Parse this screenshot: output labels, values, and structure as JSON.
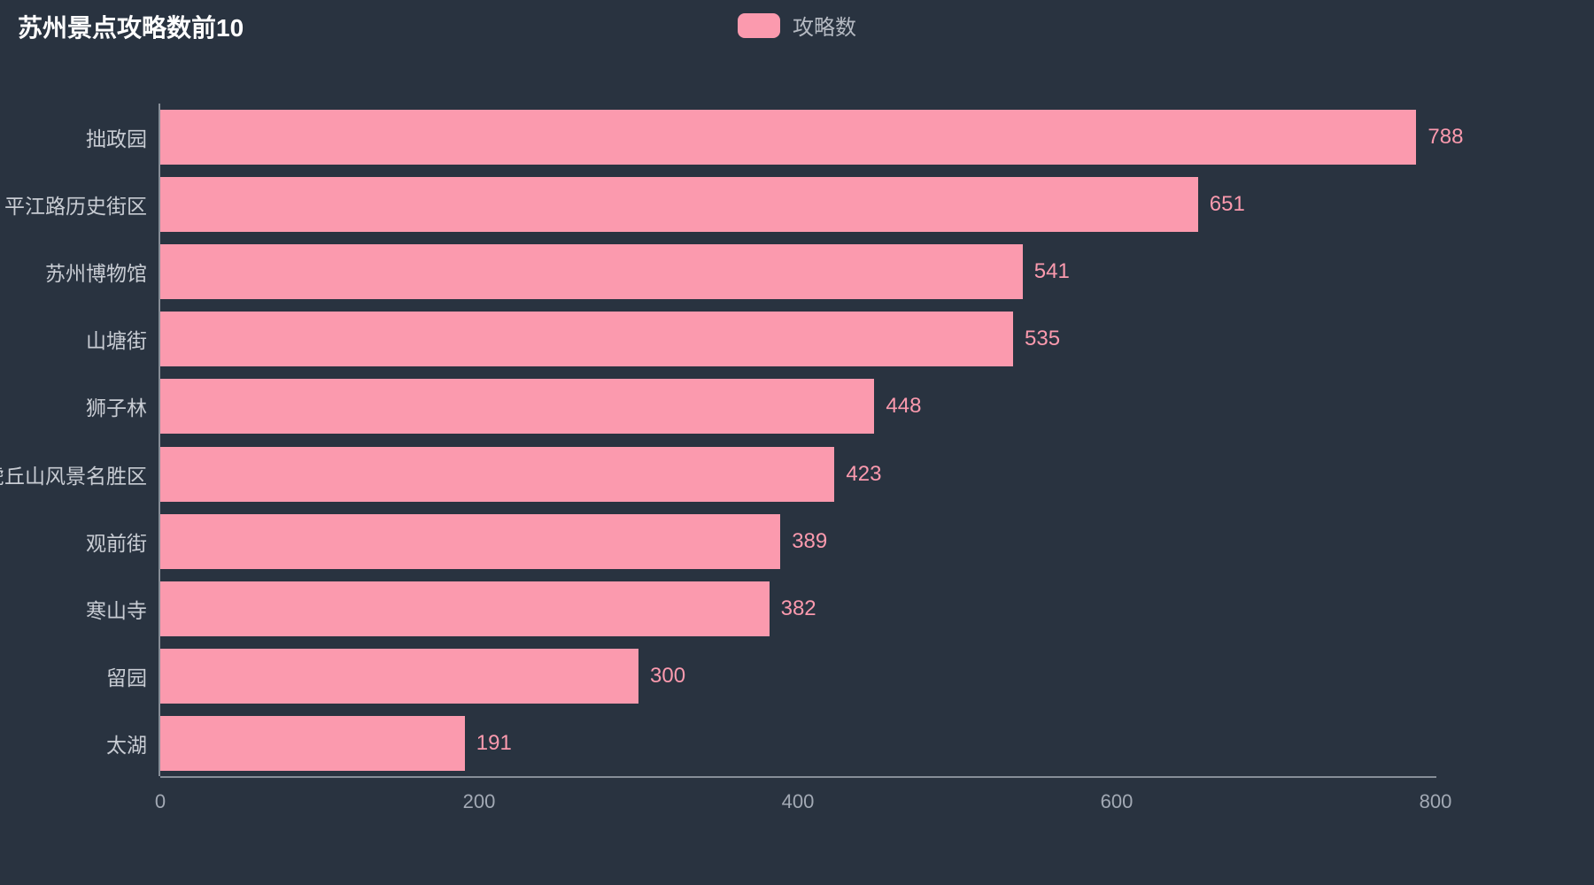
{
  "title": "苏州景点攻略数前10",
  "legend": {
    "label": "攻略数"
  },
  "colors": {
    "background": "#293340",
    "bar": "#fb9aae",
    "title": "#ffffff",
    "legend_text": "#b5bac2",
    "axis_label": "#c8ccd3",
    "tick_label": "#a2a9b4",
    "axis_line": "#878e98"
  },
  "chart_data": {
    "type": "bar",
    "orientation": "horizontal",
    "title": "苏州景点攻略数前10",
    "series_name": "攻略数",
    "categories": [
      "拙政园",
      "平江路历史街区",
      "苏州博物馆",
      "山塘街",
      "狮子林",
      "虎丘山风景名胜区",
      "观前街",
      "寒山寺",
      "留园",
      "太湖"
    ],
    "values": [
      788,
      651,
      541,
      535,
      448,
      423,
      389,
      382,
      300,
      191
    ],
    "xlim": [
      0,
      800
    ],
    "x_ticks": [
      0,
      200,
      400,
      600,
      800
    ],
    "grid": "off",
    "legend_position": "top-center",
    "value_labels": "outside-end"
  }
}
